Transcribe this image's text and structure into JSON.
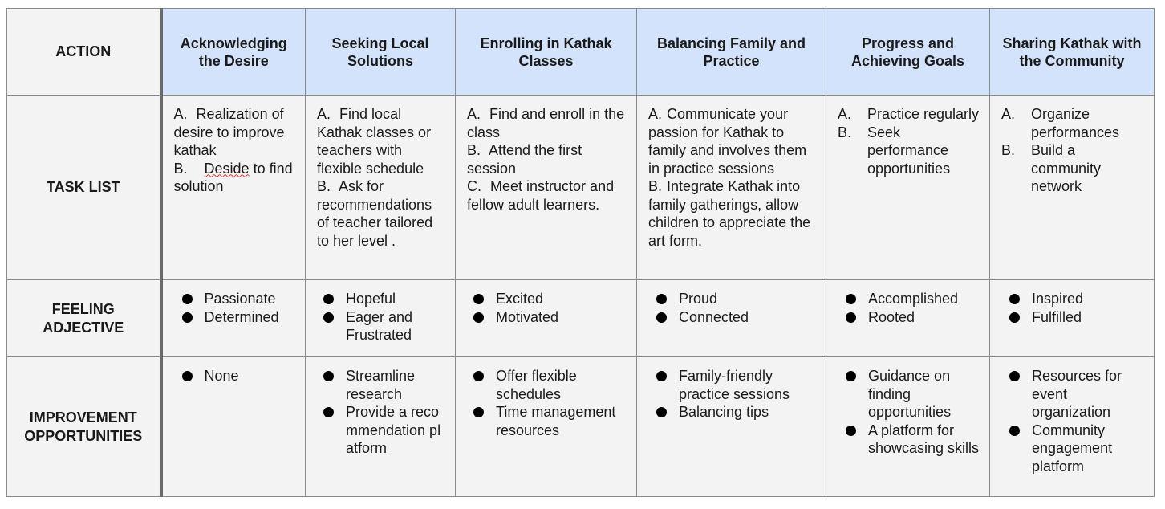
{
  "row_labels": {
    "action": "ACTION",
    "task_list": "TASK LIST",
    "feeling_1": "FEELING",
    "feeling_2": "ADJECTIVE",
    "improve_1": "IMPROVEMENT",
    "improve_2": "OPPORTUNITIES"
  },
  "stages": [
    {
      "title": "Acknowledging the Desire",
      "tasks": [
        {
          "marker": "A.",
          "text": "Realization of desire to improve kathak"
        },
        {
          "marker": "B.",
          "pre": "",
          "misspelled": "Deside",
          "post": " to find solution"
        }
      ],
      "feelings": [
        "Passionate",
        "Determined"
      ],
      "improvements": [
        "None"
      ]
    },
    {
      "title": "Seeking Local Solutions",
      "tasks": [
        {
          "marker": "A.",
          "text": "Find local Kathak classes or teachers with flexible schedule"
        },
        {
          "marker": "B.",
          "text": "Ask for recommendations of teacher tailored to her level ."
        }
      ],
      "feelings": [
        "Hopeful",
        "Eager and Frustrated"
      ],
      "improvements": [
        "Streamline research",
        "Provide a recommendation platform"
      ]
    },
    {
      "title": "Enrolling in Kathak Classes",
      "tasks": [
        {
          "marker": "A.",
          "text": "Find and enroll in the class"
        },
        {
          "marker": "B.",
          "text": "Attend the first session"
        },
        {
          "marker": "C.",
          "text": "Meet instructor and fellow adult learners."
        }
      ],
      "feelings": [
        "Excited",
        "Motivated"
      ],
      "improvements": [
        "Offer flexible schedules",
        "Time management resources"
      ]
    },
    {
      "title": "Balancing Family and Practice",
      "tasks": [
        {
          "marker": "A.",
          "text": "Communicate your passion for Kathak to family and involves them in practice sessions"
        },
        {
          "marker": "B.",
          "text": "Integrate Kathak into family gatherings, allow children to appreciate the art form."
        }
      ],
      "feelings": [
        "Proud",
        "Connected"
      ],
      "improvements": [
        "Family-friendly practice sessions",
        "Balancing tips"
      ]
    },
    {
      "title": "Progress and Achieving Goals",
      "tasks": [
        {
          "marker": "A.",
          "text": "Practice regularly"
        },
        {
          "marker": "B.",
          "text": "Seek performance opportunities"
        }
      ],
      "feelings": [
        "Accomplished",
        "Rooted"
      ],
      "improvements": [
        "Guidance on finding opportunities",
        "A platform for showcasing skills"
      ]
    },
    {
      "title": "Sharing Kathak with the Community",
      "tasks": [
        {
          "marker": "A.",
          "text": "Organize performances"
        },
        {
          "marker": "B.",
          "text": "Build a community network"
        }
      ],
      "feelings": [
        "Inspired",
        "Fulfilled"
      ],
      "improvements": [
        "Resources for event organization",
        "Community engagement platform"
      ]
    }
  ]
}
